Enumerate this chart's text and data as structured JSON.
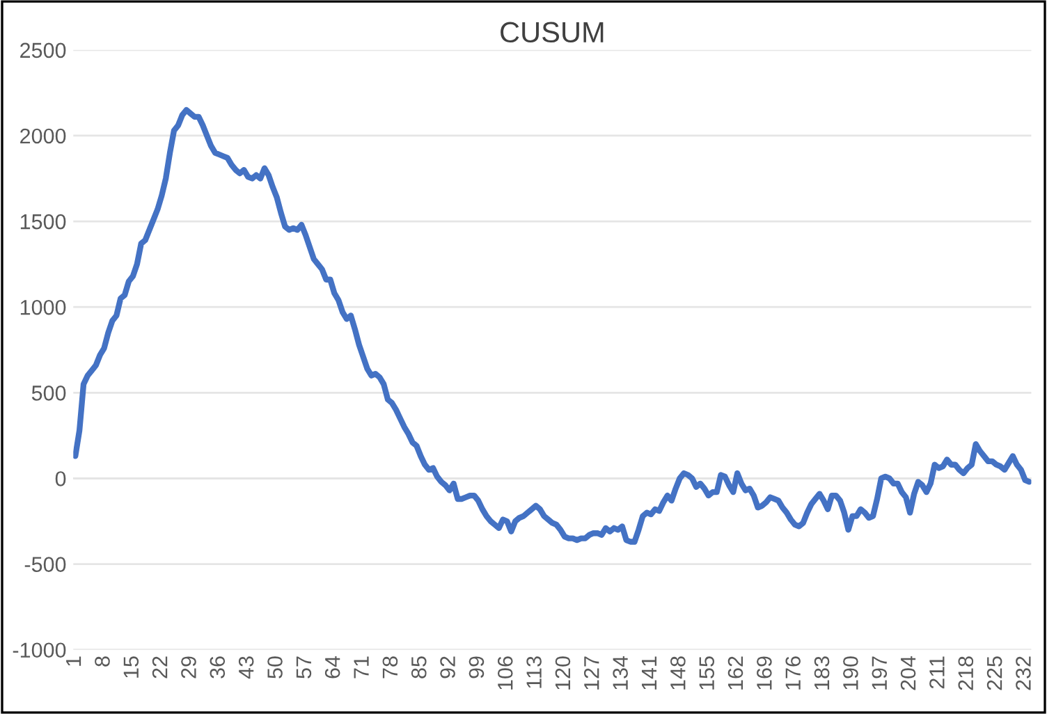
{
  "chart_data": {
    "type": "line",
    "title": "CUSUM",
    "categories": [
      "1",
      null,
      null,
      null,
      null,
      null,
      null,
      "8",
      null,
      null,
      null,
      null,
      null,
      null,
      "15",
      null,
      null,
      null,
      null,
      null,
      null,
      "22",
      null,
      null,
      null,
      null,
      null,
      null,
      "29",
      null,
      null,
      null,
      null,
      null,
      null,
      "36",
      null,
      null,
      null,
      null,
      null,
      null,
      "43",
      null,
      null,
      null,
      null,
      null,
      null,
      "50",
      null,
      null,
      null,
      null,
      null,
      null,
      "57",
      null,
      null,
      null,
      null,
      null,
      null,
      "64",
      null,
      null,
      null,
      null,
      null,
      null,
      "71",
      null,
      null,
      null,
      null,
      null,
      null,
      "78",
      null,
      null,
      null,
      null,
      null,
      null,
      "85",
      null,
      null,
      null,
      null,
      null,
      null,
      "92",
      null,
      null,
      null,
      null,
      null,
      null,
      "99",
      null,
      null,
      null,
      null,
      null,
      null,
      "106",
      null,
      null,
      null,
      null,
      null,
      null,
      "113",
      null,
      null,
      null,
      null,
      null,
      null,
      "120",
      null,
      null,
      null,
      null,
      null,
      null,
      "127",
      null,
      null,
      null,
      null,
      null,
      null,
      "134",
      null,
      null,
      null,
      null,
      null,
      null,
      "141",
      null,
      null,
      null,
      null,
      null,
      null,
      "148",
      null,
      null,
      null,
      null,
      null,
      null,
      "155",
      null,
      null,
      null,
      null,
      null,
      null,
      "162",
      null,
      null,
      null,
      null,
      null,
      null,
      "169",
      null,
      null,
      null,
      null,
      null,
      null,
      "176",
      null,
      null,
      null,
      null,
      null,
      null,
      "183",
      null,
      null,
      null,
      null,
      null,
      null,
      "190",
      null,
      null,
      null,
      null,
      null,
      null,
      "197",
      null,
      null,
      null,
      null,
      null,
      null,
      "204",
      null,
      null,
      null,
      null,
      null,
      null,
      "211",
      null,
      null,
      null,
      null,
      null,
      null,
      "218",
      null,
      null,
      null,
      null,
      null,
      null,
      "225",
      null,
      null,
      null,
      null,
      null,
      null,
      "232",
      null
    ],
    "series": [
      {
        "color": "#4472c4",
        "values": [
          130,
          280,
          550,
          600,
          630,
          660,
          720,
          760,
          850,
          920,
          950,
          1050,
          1070,
          1150,
          1180,
          1250,
          1370,
          1390,
          1450,
          1510,
          1570,
          1650,
          1750,
          1900,
          2030,
          2060,
          2120,
          2150,
          2130,
          2110,
          2110,
          2060,
          2000,
          1940,
          1900,
          1890,
          1880,
          1870,
          1830,
          1800,
          1780,
          1800,
          1760,
          1750,
          1770,
          1750,
          1810,
          1770,
          1700,
          1640,
          1550,
          1470,
          1450,
          1460,
          1450,
          1480,
          1420,
          1350,
          1280,
          1250,
          1220,
          1160,
          1160,
          1080,
          1040,
          970,
          930,
          950,
          870,
          780,
          710,
          640,
          600,
          610,
          590,
          550,
          460,
          440,
          400,
          350,
          300,
          260,
          210,
          190,
          130,
          80,
          50,
          60,
          10,
          -20,
          -40,
          -70,
          -30,
          -120,
          -120,
          -110,
          -100,
          -100,
          -130,
          -180,
          -220,
          -250,
          -270,
          -290,
          -240,
          -250,
          -310,
          -250,
          -230,
          -220,
          -200,
          -180,
          -160,
          -180,
          -220,
          -240,
          -260,
          -270,
          -300,
          -340,
          -350,
          -350,
          -360,
          -350,
          -350,
          -330,
          -320,
          -320,
          -330,
          -290,
          -310,
          -290,
          -300,
          -280,
          -360,
          -370,
          -370,
          -300,
          -220,
          -200,
          -210,
          -180,
          -190,
          -140,
          -100,
          -130,
          -60,
          0,
          30,
          20,
          0,
          -50,
          -30,
          -60,
          -100,
          -80,
          -80,
          20,
          10,
          -40,
          -80,
          30,
          -30,
          -70,
          -60,
          -100,
          -170,
          -160,
          -140,
          -110,
          -120,
          -130,
          -170,
          -200,
          -240,
          -270,
          -280,
          -260,
          -200,
          -150,
          -120,
          -90,
          -130,
          -180,
          -100,
          -100,
          -130,
          -200,
          -300,
          -220,
          -220,
          -180,
          -200,
          -230,
          -220,
          -120,
          0,
          10,
          0,
          -30,
          -30,
          -80,
          -110,
          -200,
          -90,
          -20,
          -40,
          -80,
          -30,
          80,
          60,
          70,
          110,
          80,
          80,
          50,
          30,
          60,
          80,
          200,
          160,
          130,
          100,
          100,
          80,
          70,
          50,
          90,
          130,
          80,
          50,
          -10,
          -20
        ]
      }
    ],
    "ylim": [
      -1000,
      2500
    ],
    "yticks": [
      -1000,
      -500,
      0,
      500,
      1000,
      1500,
      2000,
      2500
    ],
    "grid": "y"
  }
}
